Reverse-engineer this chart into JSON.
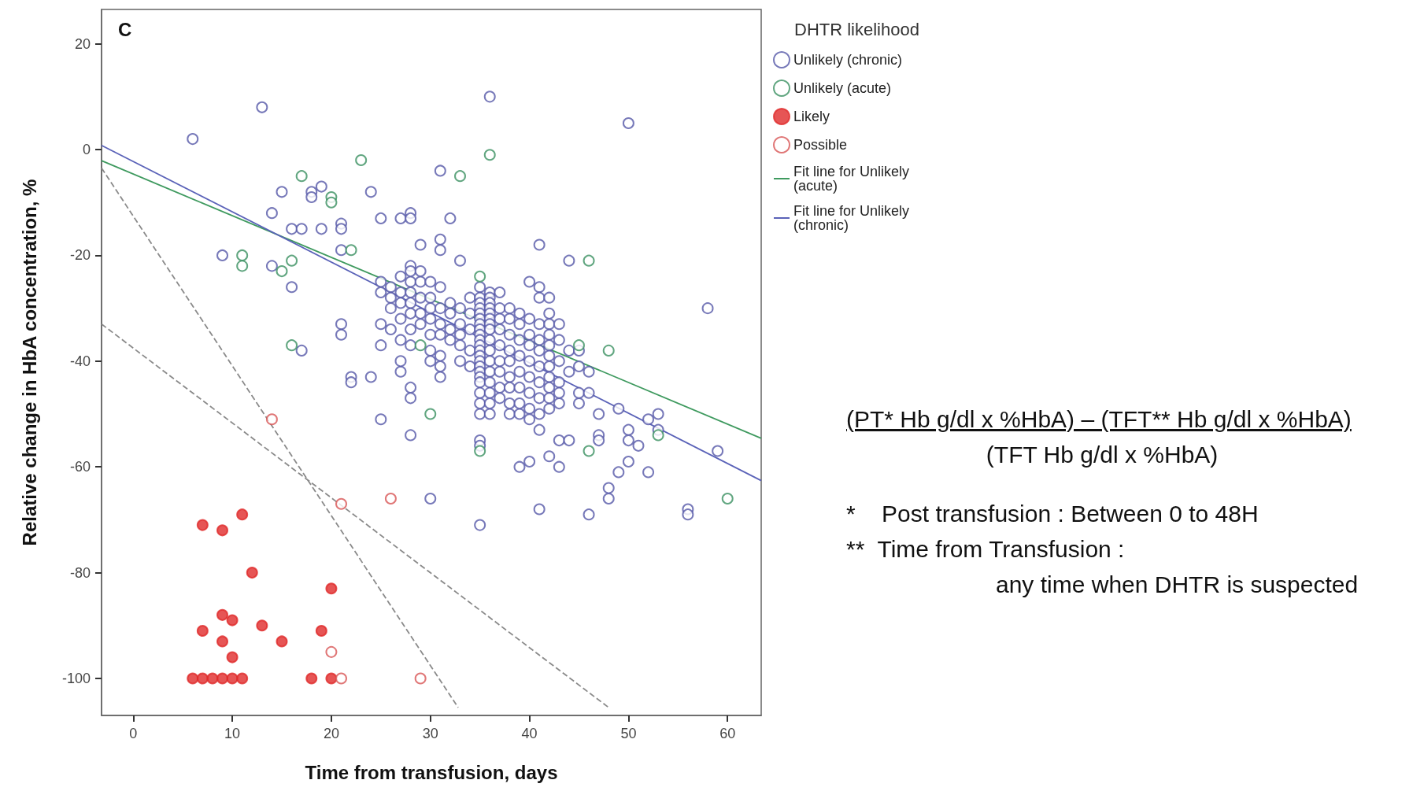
{
  "chart_data": {
    "type": "scatter",
    "title": "C",
    "xlabel": "Time from transfusion, days",
    "ylabel": "Relative change in HbA concentration, %",
    "legend_title": "DHTR likelihood",
    "legend": "right",
    "grid": false,
    "xlim": [
      -3.2,
      63.4
    ],
    "xticks": [
      0,
      10,
      20,
      30,
      40,
      50,
      60
    ],
    "ylim": [
      -107,
      26.5
    ],
    "yticks": [
      -100,
      -80,
      -60,
      -40,
      -20,
      0,
      20
    ],
    "annotations": [
      "(PT* Hb g/dl x %HbA) – (TFT** Hb g/dl x %HbA)",
      "(TFT Hb g/dl x %HbA)",
      "*    Post transfusion : Between 0 to 48H",
      "**  Time from Transfusion :",
      "any time when DHTR is suspected"
    ],
    "series": [
      {
        "name": "Unlikely (chronic)",
        "color": "#5558a8",
        "marker": "emptyCircle",
        "x": [
          6,
          13,
          36,
          50,
          58,
          59,
          56,
          56,
          15,
          14,
          18,
          19,
          18,
          24,
          31,
          9,
          16,
          17,
          19,
          21,
          21,
          25,
          27,
          28,
          28,
          32,
          29,
          31,
          31,
          21,
          14,
          16,
          17,
          21,
          21,
          22,
          22,
          24,
          25,
          27,
          27,
          28,
          28,
          28,
          31,
          30,
          33,
          35,
          41,
          44,
          39,
          40,
          41,
          43,
          46,
          48,
          48,
          49,
          50,
          52,
          51,
          53,
          53,
          52,
          49,
          47,
          45,
          43,
          43,
          42,
          44,
          47,
          47,
          50,
          50,
          25,
          25,
          25,
          25,
          26,
          26,
          26,
          26,
          27,
          27,
          27,
          27,
          27,
          28,
          28,
          28,
          28,
          28,
          28,
          28,
          28,
          29,
          29,
          29,
          29,
          29,
          30,
          30,
          30,
          30,
          30,
          30,
          30,
          31,
          31,
          31,
          31,
          31,
          31,
          32,
          32,
          32,
          32,
          33,
          33,
          33,
          33,
          33,
          34,
          34,
          34,
          34,
          34,
          35,
          35,
          35,
          35,
          35,
          35,
          35,
          35,
          35,
          35,
          35,
          35,
          35,
          35,
          35,
          35,
          35,
          35,
          35,
          35,
          35,
          35,
          35,
          36,
          36,
          36,
          36,
          36,
          36,
          36,
          36,
          36,
          36,
          36,
          36,
          36,
          36,
          36,
          36,
          37,
          37,
          37,
          37,
          37,
          37,
          37,
          37,
          37,
          38,
          38,
          38,
          38,
          38,
          38,
          38,
          38,
          38,
          39,
          39,
          39,
          39,
          39,
          39,
          39,
          39,
          40,
          40,
          40,
          40,
          40,
          40,
          40,
          40,
          40,
          41,
          41,
          41,
          41,
          41,
          41,
          41,
          41,
          41,
          41,
          42,
          42,
          42,
          42,
          42,
          42,
          42,
          42,
          42,
          42,
          42,
          43,
          43,
          43,
          43,
          43,
          44,
          44,
          45,
          45,
          45,
          46,
          46
        ],
        "values": [
          2,
          8,
          10,
          5,
          -30,
          -57,
          -68,
          -69,
          -8,
          -12,
          -8,
          -7,
          -9,
          -8,
          -4,
          -20,
          -15,
          -15,
          -15,
          -14,
          -15,
          -13,
          -13,
          -12,
          -13,
          -13,
          -18,
          -17,
          -19,
          -19,
          -22,
          -26,
          -38,
          -33,
          -35,
          -43,
          -44,
          -43,
          -51,
          -42,
          -40,
          -45,
          -47,
          -54,
          -43,
          -66,
          -21,
          -71,
          -18,
          -21,
          -60,
          -59,
          -68,
          -60,
          -69,
          -64,
          -66,
          -61,
          -59,
          -61,
          -56,
          -50,
          -53,
          -51,
          -49,
          -50,
          -48,
          -48,
          -55,
          -58,
          -55,
          -54,
          -55,
          -53,
          -55,
          -25,
          -27,
          -33,
          -37,
          -26,
          -28,
          -30,
          -34,
          -24,
          -27,
          -29,
          -32,
          -36,
          -22,
          -23,
          -25,
          -27,
          -29,
          -31,
          -34,
          -37,
          -23,
          -25,
          -28,
          -31,
          -33,
          -25,
          -28,
          -30,
          -32,
          -35,
          -38,
          -40,
          -26,
          -30,
          -33,
          -35,
          -39,
          -41,
          -29,
          -31,
          -34,
          -36,
          -30,
          -33,
          -35,
          -37,
          -40,
          -28,
          -31,
          -34,
          -38,
          -41,
          -26,
          -28,
          -29,
          -30,
          -31,
          -32,
          -33,
          -34,
          -35,
          -36,
          -37,
          -38,
          -39,
          -40,
          -41,
          -42,
          -43,
          -44,
          -46,
          -48,
          -50,
          -55,
          -56,
          -27,
          -28,
          -29,
          -30,
          -31,
          -32,
          -33,
          -34,
          -36,
          -38,
          -40,
          -42,
          -44,
          -46,
          -48,
          -50,
          -27,
          -30,
          -32,
          -34,
          -37,
          -40,
          -42,
          -45,
          -47,
          -30,
          -32,
          -35,
          -38,
          -40,
          -43,
          -45,
          -48,
          -50,
          -31,
          -33,
          -36,
          -39,
          -42,
          -45,
          -48,
          -50,
          -25,
          -32,
          -35,
          -37,
          -40,
          -43,
          -46,
          -49,
          -51,
          -26,
          -28,
          -33,
          -36,
          -38,
          -41,
          -44,
          -47,
          -50,
          -53,
          -28,
          -31,
          -33,
          -35,
          -37,
          -39,
          -41,
          -43,
          -45,
          -47,
          -49,
          -33,
          -36,
          -40,
          -44,
          -46,
          -38,
          -42,
          -38,
          -41,
          -46,
          -42,
          -46
        ]
      },
      {
        "name": "Unlikely (acute)",
        "color": "#3a9060",
        "marker": "emptyCircle",
        "x": [
          17,
          23,
          33,
          36,
          20,
          20,
          11,
          11,
          15,
          16,
          22,
          16,
          29,
          30,
          35,
          46,
          45,
          48,
          53,
          46,
          60,
          35
        ],
        "values": [
          -5,
          -2,
          -5,
          -1,
          -9,
          -10,
          -20,
          -22,
          -23,
          -21,
          -19,
          -37,
          -37,
          -50,
          -24,
          -21,
          -37,
          -38,
          -54,
          -57,
          -66,
          -57
        ]
      },
      {
        "name": "Likely",
        "color": "#e02a2a",
        "marker": "circle",
        "x": [
          7,
          9,
          11,
          12,
          20,
          9,
          10,
          7,
          13,
          19,
          9,
          15,
          10,
          6,
          7,
          8,
          9,
          10,
          11,
          18,
          20
        ],
        "values": [
          -71,
          -72,
          -69,
          -80,
          -83,
          -88,
          -89,
          -91,
          -90,
          -91,
          -93,
          -93,
          -96,
          -100,
          -100,
          -100,
          -100,
          -100,
          -100,
          -100,
          -100
        ]
      },
      {
        "name": "Possible",
        "color": "#d85555",
        "marker": "emptyCircle",
        "x": [
          14,
          21,
          26,
          20,
          21,
          29
        ],
        "values": [
          -51,
          -67,
          -66,
          -95,
          -100,
          -100
        ]
      },
      {
        "name": "Fit line for Unlikely (acute)",
        "type": "line",
        "color": "#3f9a5f",
        "marker": "none",
        "line_style": "solid",
        "x": [
          -3.2,
          63.4
        ],
        "values": [
          -2.1,
          -54.6
        ]
      },
      {
        "name": "Fit line for Unlikely (chronic)",
        "type": "line",
        "color": "#5a62b8",
        "marker": "none",
        "line_style": "solid",
        "x": [
          -3.2,
          63.4
        ],
        "values": [
          0.8,
          -62.6
        ]
      },
      {
        "type": "line",
        "color": "#8a8a8a",
        "marker": "none",
        "line_style": "dashed",
        "x": [
          -3.2,
          32.8
        ],
        "values": [
          -3.5,
          -105.5
        ]
      },
      {
        "type": "line",
        "color": "#8a8a8a",
        "marker": "none",
        "line_style": "dashed",
        "x": [
          -3.2,
          48
        ],
        "values": [
          -33,
          -105.5
        ]
      }
    ]
  }
}
